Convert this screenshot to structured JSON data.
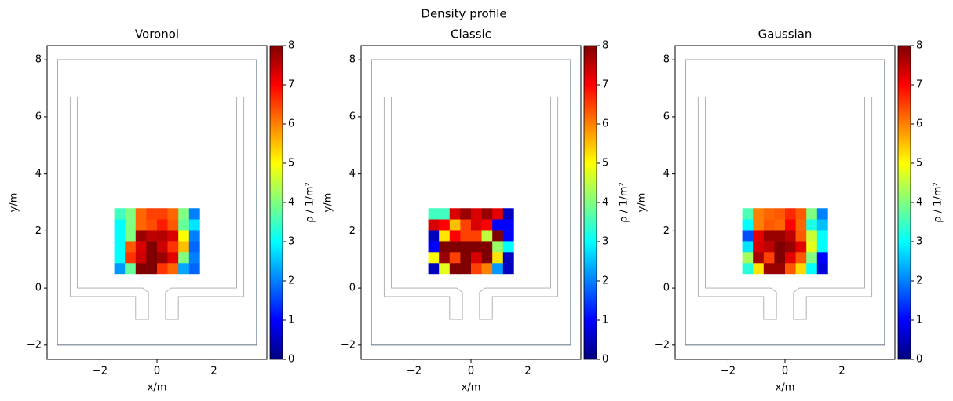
{
  "title": "Density profile",
  "geometry": {
    "outer_x": [
      -3.5,
      3.5,
      3.5,
      -3.5,
      -3.5
    ],
    "outer_y": [
      -2,
      -2,
      8,
      8,
      -2
    ],
    "left_x": [
      -3.05,
      -2.8,
      -2.8,
      -0.5,
      -0.3,
      -0.3,
      -0.75,
      -0.75,
      -3.05,
      -3.05
    ],
    "left_y": [
      6.7,
      6.7,
      0,
      0,
      -0.15,
      -1.1,
      -1.1,
      -0.3,
      -0.3,
      6.7
    ],
    "right_x": [
      3.05,
      2.8,
      2.8,
      0.5,
      0.3,
      0.3,
      0.75,
      0.75,
      3.05,
      3.05
    ],
    "right_y": [
      6.7,
      6.7,
      0,
      0,
      -0.15,
      -1.1,
      -1.1,
      -0.3,
      -0.3,
      6.7
    ]
  },
  "chart_data": [
    {
      "type": "heatmap",
      "title": "Voronoi",
      "xlabel": "x/m",
      "ylabel": "y/m",
      "colorbar_label": "ρ / 1/m²",
      "colormap": "jet",
      "xlim": [
        -3.86,
        3.86
      ],
      "ylim": [
        -2.5,
        8.5
      ],
      "xticks": [
        {
          "value": -2,
          "label": "−2"
        },
        0,
        2
      ],
      "yticks": [
        {
          "value": -2,
          "label": "−2"
        },
        0,
        2,
        4,
        6,
        8
      ],
      "clim": [
        0,
        8
      ],
      "cticks": [
        0,
        1,
        2,
        3,
        4,
        5,
        6,
        7,
        8
      ],
      "x_edges": [
        -1.5,
        -1.125,
        -0.75,
        -0.375,
        0,
        0.375,
        0.75,
        1.125,
        1.5
      ],
      "y_edges": [
        0.5,
        0.883,
        1.267,
        1.65,
        2.033,
        2.417,
        2.8
      ],
      "z": [
        [
          2.2,
          3.8,
          8,
          8,
          6.6,
          6.2,
          2.3,
          1.8
        ],
        [
          3,
          6.6,
          7.4,
          8,
          7.8,
          7.2,
          4,
          2
        ],
        [
          3,
          6.3,
          7.3,
          8,
          7.4,
          6.6,
          5.5,
          1.8
        ],
        [
          3,
          4,
          7.8,
          7.5,
          7.6,
          7.3,
          5,
          2
        ],
        [
          3,
          4,
          6.2,
          6.4,
          6.8,
          6.3,
          3.8,
          2.8
        ],
        [
          3.5,
          4,
          6.2,
          6.5,
          6.5,
          6.2,
          4,
          2
        ]
      ]
    },
    {
      "type": "heatmap",
      "title": "Classic",
      "xlabel": "x/m",
      "ylabel": "y/m",
      "colorbar_label": "ρ / 1/m²",
      "colormap": "jet",
      "xlim": [
        -3.86,
        3.86
      ],
      "ylim": [
        -2.5,
        8.5
      ],
      "xticks": [
        {
          "value": -2,
          "label": "−2"
        },
        0,
        2
      ],
      "yticks": [
        {
          "value": -2,
          "label": "−2"
        },
        0,
        2,
        4,
        6,
        8
      ],
      "clim": [
        0,
        8
      ],
      "cticks": [
        0,
        1,
        2,
        3,
        4,
        5,
        6,
        7,
        8
      ],
      "x_edges": [
        -1.5,
        -1.125,
        -0.75,
        -0.375,
        0,
        0.375,
        0.75,
        1.125,
        1.5
      ],
      "y_edges": [
        0.5,
        0.883,
        1.267,
        1.65,
        2.033,
        2.417,
        2.8
      ],
      "z": [
        [
          0.5,
          4.8,
          8,
          8,
          6.5,
          6,
          2.2,
          0.5
        ],
        [
          5,
          7.8,
          6.5,
          8,
          7.3,
          8,
          5.2,
          0.5
        ],
        [
          1,
          8,
          8,
          8,
          8,
          8,
          4.2,
          3
        ],
        [
          0.5,
          5.2,
          7,
          6.5,
          6.5,
          4.5,
          8,
          1
        ],
        [
          7.3,
          7,
          5.5,
          6.5,
          7.3,
          7,
          1,
          1
        ],
        [
          3.5,
          3.5,
          7.3,
          7.8,
          7.3,
          7.8,
          7.2,
          0.5
        ]
      ]
    },
    {
      "type": "heatmap",
      "title": "Gaussian",
      "xlabel": "x/m",
      "ylabel": "y/m",
      "colorbar_label": "ρ / 1/m²",
      "colormap": "jet",
      "xlim": [
        -3.86,
        3.86
      ],
      "ylim": [
        -2.5,
        8.5
      ],
      "xticks": [
        {
          "value": -2,
          "label": "−2"
        },
        0,
        2
      ],
      "yticks": [
        {
          "value": -2,
          "label": "−2"
        },
        0,
        2,
        4,
        6,
        8
      ],
      "clim": [
        0,
        8
      ],
      "cticks": [
        0,
        1,
        2,
        3,
        4,
        5,
        6,
        7,
        8
      ],
      "x_edges": [
        -1.5,
        -1.125,
        -0.75,
        -0.375,
        0,
        0.375,
        0.75,
        1.125,
        1.5
      ],
      "y_edges": [
        0.5,
        0.883,
        1.267,
        1.65,
        2.033,
        2.417,
        2.8
      ],
      "z": [
        [
          3.3,
          5.2,
          7.8,
          7.8,
          6.3,
          5.3,
          3,
          0.7
        ],
        [
          4.3,
          7.7,
          6.5,
          8,
          7.2,
          6.3,
          4,
          1
        ],
        [
          2.8,
          7.3,
          7.5,
          8,
          7.8,
          7.2,
          4.8,
          3
        ],
        [
          1.6,
          7.2,
          7.8,
          7.8,
          7.5,
          6.3,
          4.6,
          3
        ],
        [
          3,
          6,
          6.3,
          6.2,
          7,
          6.2,
          3.2,
          2.5
        ],
        [
          3.6,
          6,
          6.2,
          6.3,
          6.7,
          6.3,
          4,
          2
        ]
      ]
    }
  ]
}
